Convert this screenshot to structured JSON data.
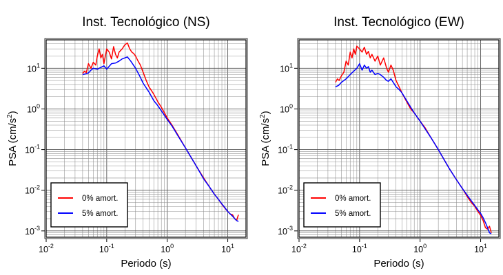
{
  "chart_data": [
    {
      "type": "line",
      "title": "Inst. Tecnológico (NS)",
      "xlabel": "Periodo (s)",
      "ylabel_base": "PSA (cm/s",
      "ylabel_exp": "2",
      "ylabel_close": ")",
      "xscale": "log",
      "yscale": "log",
      "xlim": [
        0.01,
        20
      ],
      "ylim": [
        0.0007,
        50
      ],
      "xticks": [
        {
          "base": "10",
          "exp": "-2",
          "v": 0.01
        },
        {
          "base": "10",
          "exp": "-1",
          "v": 0.1
        },
        {
          "base": "10",
          "exp": "0",
          "v": 1
        },
        {
          "base": "10",
          "exp": "1",
          "v": 10
        }
      ],
      "yticks": [
        {
          "base": "10",
          "exp": "-3",
          "v": 0.001
        },
        {
          "base": "10",
          "exp": "-2",
          "v": 0.01
        },
        {
          "base": "10",
          "exp": "-1",
          "v": 0.1
        },
        {
          "base": "10",
          "exp": "0",
          "v": 1
        },
        {
          "base": "10",
          "exp": "1",
          "v": 10
        }
      ],
      "grid": true,
      "legend_position": "bottom-left",
      "series": [
        {
          "name": "0% amort.",
          "color": "#ff0000",
          "x": [
            0.04,
            0.043,
            0.046,
            0.05,
            0.055,
            0.06,
            0.066,
            0.07,
            0.075,
            0.08,
            0.085,
            0.09,
            0.1,
            0.11,
            0.12,
            0.13,
            0.14,
            0.15,
            0.16,
            0.18,
            0.2,
            0.22,
            0.24,
            0.26,
            0.28,
            0.3,
            0.33,
            0.36,
            0.4,
            0.45,
            0.5,
            0.6,
            0.7,
            0.8,
            1.0,
            1.2,
            1.5,
            2.0,
            3.0,
            4.0,
            5.0,
            6.0,
            7.0,
            8.0,
            9.0,
            10.0,
            11.0,
            12.0,
            13.0,
            14.0,
            15.0
          ],
          "y": [
            7.5,
            8.5,
            7.8,
            13,
            10,
            14,
            12,
            20,
            30,
            18,
            22,
            13,
            30,
            25,
            17,
            34,
            22,
            18,
            25,
            30,
            38,
            42,
            30,
            25,
            23,
            20,
            15,
            12,
            8,
            5,
            3.5,
            2.3,
            1.5,
            1.1,
            0.6,
            0.4,
            0.23,
            0.11,
            0.04,
            0.02,
            0.012,
            0.008,
            0.006,
            0.0045,
            0.0036,
            0.003,
            0.0026,
            0.0025,
            0.002,
            0.0018,
            0.0025
          ]
        },
        {
          "name": "5% amort.",
          "color": "#0000ff",
          "x": [
            0.04,
            0.045,
            0.05,
            0.055,
            0.06,
            0.07,
            0.08,
            0.09,
            0.1,
            0.12,
            0.14,
            0.16,
            0.18,
            0.2,
            0.22,
            0.25,
            0.3,
            0.35,
            0.4,
            0.5,
            0.6,
            0.7,
            0.8,
            1.0,
            1.2,
            1.5,
            2.0,
            3.0,
            4.0,
            5.0,
            6.0,
            7.0,
            8.0,
            9.0,
            10.0,
            11.0,
            12.0,
            13.0,
            14.0,
            15.0
          ],
          "y": [
            7,
            7.3,
            7.7,
            9,
            10,
            9.5,
            10.5,
            11.5,
            9.5,
            13,
            13.5,
            15,
            17,
            18,
            19,
            15,
            10,
            6.5,
            4.3,
            2.6,
            1.6,
            1.2,
            0.9,
            0.55,
            0.38,
            0.22,
            0.11,
            0.04,
            0.019,
            0.012,
            0.008,
            0.006,
            0.0046,
            0.0037,
            0.003,
            0.0026,
            0.0023,
            0.002,
            0.0018,
            0.0017
          ]
        }
      ]
    },
    {
      "type": "line",
      "title": "Inst. Tecnológico (EW)",
      "xlabel": "Periodo (s)",
      "ylabel_base": "PSA (cm/s",
      "ylabel_exp": "2",
      "ylabel_close": ")",
      "xscale": "log",
      "yscale": "log",
      "xlim": [
        0.01,
        20
      ],
      "ylim": [
        0.0007,
        50
      ],
      "xticks": [
        {
          "base": "10",
          "exp": "-2",
          "v": 0.01
        },
        {
          "base": "10",
          "exp": "-1",
          "v": 0.1
        },
        {
          "base": "10",
          "exp": "0",
          "v": 1
        },
        {
          "base": "10",
          "exp": "1",
          "v": 10
        }
      ],
      "yticks": [
        {
          "base": "10",
          "exp": "-3",
          "v": 0.001
        },
        {
          "base": "10",
          "exp": "-2",
          "v": 0.01
        },
        {
          "base": "10",
          "exp": "-1",
          "v": 0.1
        },
        {
          "base": "10",
          "exp": "0",
          "v": 1
        },
        {
          "base": "10",
          "exp": "1",
          "v": 10
        }
      ],
      "grid": true,
      "legend_position": "bottom-left",
      "series": [
        {
          "name": "0% amort.",
          "color": "#ff0000",
          "x": [
            0.04,
            0.043,
            0.046,
            0.05,
            0.055,
            0.06,
            0.065,
            0.07,
            0.075,
            0.08,
            0.085,
            0.09,
            0.1,
            0.11,
            0.12,
            0.13,
            0.14,
            0.15,
            0.16,
            0.18,
            0.2,
            0.22,
            0.25,
            0.28,
            0.3,
            0.33,
            0.36,
            0.4,
            0.45,
            0.5,
            0.6,
            0.7,
            0.8,
            1.0,
            1.2,
            1.5,
            2.0,
            3.0,
            4.0,
            5.0,
            6.0,
            7.0,
            8.0,
            9.0,
            10.0,
            11.0,
            12.0,
            13.0,
            14.0,
            15.0
          ],
          "y": [
            4.5,
            5.5,
            5.0,
            6.5,
            8,
            15,
            12,
            25,
            18,
            30,
            22,
            35,
            30,
            25,
            33,
            22,
            26,
            18,
            22,
            15,
            20,
            12,
            18,
            10,
            8,
            12,
            9,
            5,
            3.5,
            2.5,
            1.5,
            1.0,
            0.8,
            0.5,
            0.35,
            0.2,
            0.1,
            0.035,
            0.018,
            0.011,
            0.007,
            0.005,
            0.004,
            0.003,
            0.0024,
            0.0018,
            0.0012,
            0.0011,
            0.0013,
            0.0009
          ]
        },
        {
          "name": "5% amort.",
          "color": "#0000ff",
          "x": [
            0.04,
            0.045,
            0.05,
            0.055,
            0.06,
            0.07,
            0.08,
            0.09,
            0.1,
            0.11,
            0.12,
            0.13,
            0.14,
            0.15,
            0.16,
            0.18,
            0.2,
            0.22,
            0.25,
            0.28,
            0.3,
            0.33,
            0.36,
            0.4,
            0.45,
            0.5,
            0.6,
            0.7,
            0.8,
            1.0,
            1.2,
            1.5,
            2.0,
            3.0,
            4.0,
            5.0,
            6.0,
            7.0,
            8.0,
            9.0,
            10.0,
            11.0,
            12.0,
            13.0,
            14.0,
            15.0
          ],
          "y": [
            3.5,
            3.8,
            4.5,
            5.0,
            5.5,
            7,
            8.5,
            10,
            13,
            9,
            12,
            10,
            11,
            8,
            9,
            7,
            7.5,
            7,
            6,
            5,
            4.8,
            5.5,
            4.5,
            3.5,
            3,
            2.5,
            1.6,
            1.1,
            0.8,
            0.5,
            0.33,
            0.2,
            0.1,
            0.035,
            0.018,
            0.011,
            0.0075,
            0.0055,
            0.0042,
            0.0033,
            0.0027,
            0.0021,
            0.0016,
            0.0012,
            0.0009,
            0.00085
          ]
        }
      ]
    }
  ]
}
